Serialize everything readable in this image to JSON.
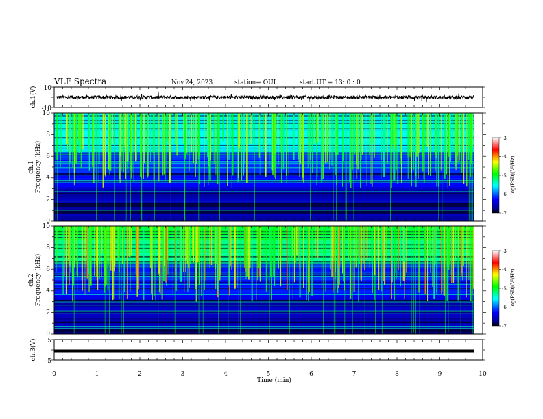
{
  "header": {
    "title": "VLF Spectra",
    "date": "Nov.24, 2023",
    "station": "station= OUI",
    "start": "start  UT  =   13: 0  : 0"
  },
  "chart_data": [
    {
      "type": "line",
      "panel": "ch1-waveform",
      "ylabel": "ch.1(V)",
      "ylim": [
        -10,
        10
      ],
      "yticks": [
        "10",
        "-10"
      ],
      "xlim": [
        0,
        10
      ],
      "color": "#000000"
    },
    {
      "type": "heatmap",
      "panel": "ch1-spectrogram",
      "ylabel_line1": "ch.1",
      "ylabel_line2": "Frequency  (kHz)",
      "ylim": [
        0,
        10
      ],
      "yticks": [
        "0",
        "2",
        "4",
        "6",
        "8",
        "10"
      ],
      "xlim": [
        0,
        10
      ],
      "data_end_min": 9.8,
      "colorbar": {
        "label": "log(PSD)(V²/Hz)",
        "range": [
          -7,
          -3
        ],
        "ticks": [
          "-3",
          "-4",
          "-5",
          "-6",
          "-7"
        ]
      }
    },
    {
      "type": "heatmap",
      "panel": "ch2-spectrogram",
      "ylabel_line1": "ch.2",
      "ylabel_line2": "Frequency  (kHz)",
      "ylim": [
        0,
        10
      ],
      "yticks": [
        "0",
        "2",
        "4",
        "6",
        "8",
        "10"
      ],
      "xlim": [
        0,
        10
      ],
      "data_end_min": 9.8,
      "colorbar": {
        "label": "log(PSD)(V²/Hz)",
        "range": [
          -7,
          -3
        ],
        "ticks": [
          "-3",
          "-4",
          "-5",
          "-6",
          "-7"
        ]
      }
    },
    {
      "type": "line",
      "panel": "ch3-waveform",
      "ylabel": "ch.3(V)",
      "ylim": [
        -5,
        5
      ],
      "yticks": [
        "5",
        "-5"
      ],
      "xlim": [
        0,
        10
      ],
      "value": -0.5,
      "color": "#000000"
    }
  ],
  "xaxis": {
    "label": "Time  (min)",
    "ticks": [
      "0",
      "1",
      "2",
      "3",
      "4",
      "5",
      "6",
      "7",
      "8",
      "9",
      "10"
    ]
  }
}
